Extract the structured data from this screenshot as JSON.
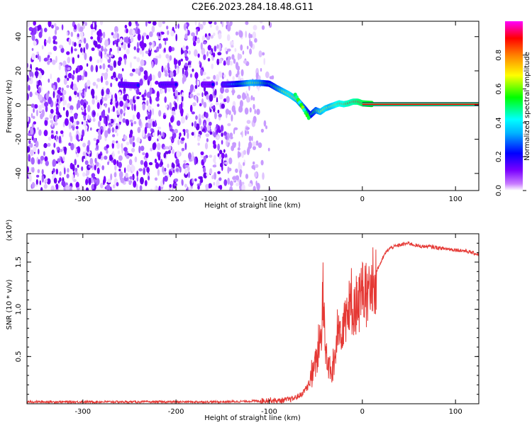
{
  "title": "C2E6.2023.284.18.48.G11",
  "chart_data": [
    {
      "type": "heatmap",
      "xlabel": "Height of straight line (km)",
      "ylabel": "Frequency (Hz)",
      "xlim": [
        -360,
        125
      ],
      "ylim": [
        -50,
        49
      ],
      "x_ticks": [
        -300,
        -200,
        -100,
        0,
        100
      ],
      "y_ticks": [
        -40,
        -20,
        0,
        20,
        40
      ],
      "colorbar": {
        "label": "Normalized spectral amplitude",
        "range": [
          0,
          1
        ],
        "ticks": [
          "0.0",
          "0.2",
          "0.4",
          "0.6",
          "0.8"
        ],
        "colormap": [
          "#ffffff",
          "#7a00ff",
          "#0000ff",
          "#00ffff",
          "#00ff00",
          "#ffff00",
          "#ff0000",
          "#ff00ff"
        ]
      },
      "noise_region": {
        "x_from": -360,
        "x_to": -95,
        "dense_to": -145
      },
      "ridge": {
        "x": [
          -260,
          -245,
          -210,
          -195,
          -165,
          -145,
          -130,
          -120,
          -110,
          -100,
          -92,
          -85,
          -78,
          -70,
          -62,
          -56,
          -50,
          -45,
          -40,
          -35,
          -30,
          -25,
          -20,
          -15,
          -10,
          -5,
          0,
          10
        ],
        "frequency": [
          12,
          11.5,
          12,
          12,
          12,
          12,
          12.5,
          13,
          13,
          12.5,
          10,
          8,
          6,
          3,
          -2,
          -6,
          -3,
          -4,
          -2,
          -1,
          0,
          1,
          0.5,
          1,
          2,
          2,
          1,
          0.6
        ],
        "amplitude": [
          0.3,
          0.3,
          0.3,
          0.25,
          0.25,
          0.35,
          0.55,
          0.7,
          0.65,
          0.5,
          0.6,
          0.7,
          0.75,
          0.7,
          0.6,
          0.5,
          0.6,
          0.7,
          0.75,
          0.7,
          0.75,
          0.8,
          0.8,
          0.85,
          0.85,
          0.9,
          0.95,
          1.0
        ]
      },
      "tone": {
        "x_from": 0,
        "x_to": 125,
        "frequency": 0.5,
        "amplitude": 1.0
      }
    },
    {
      "type": "line",
      "xlabel": "Height of straight line (km)",
      "ylabel": "SNR (10 * v/v)",
      "scale_label": "(x10⁴)",
      "xlim": [
        -360,
        125
      ],
      "ylim": [
        0,
        1.8
      ],
      "x_ticks": [
        -300,
        -200,
        -100,
        0,
        100
      ],
      "y_ticks": [
        0.5,
        1.0,
        1.5
      ],
      "y_tick_labels": [
        "0.5",
        "1.0",
        "1.5"
      ],
      "line_color": "#e53935",
      "series": [
        {
          "x": [
            -360,
            -300,
            -250,
            -200,
            -150,
            -110,
            -100,
            -90,
            -75,
            -65,
            -55,
            -48,
            -44,
            -42,
            -40,
            -36,
            -33,
            -30,
            -25,
            -20,
            -15,
            -10,
            -5,
            0,
            5,
            10,
            15,
            20,
            25,
            30,
            40,
            50,
            60,
            75,
            90,
            100,
            110,
            125
          ],
          "y": [
            0.02,
            0.02,
            0.02,
            0.02,
            0.02,
            0.03,
            0.04,
            0.03,
            0.05,
            0.1,
            0.25,
            0.5,
            0.75,
            1.2,
            0.6,
            0.4,
            0.3,
            0.45,
            0.75,
            0.9,
            1.0,
            1.05,
            1.05,
            1.15,
            1.15,
            1.2,
            1.4,
            1.5,
            1.6,
            1.65,
            1.68,
            1.7,
            1.67,
            1.66,
            1.64,
            1.63,
            1.62,
            1.58
          ]
        }
      ]
    }
  ]
}
